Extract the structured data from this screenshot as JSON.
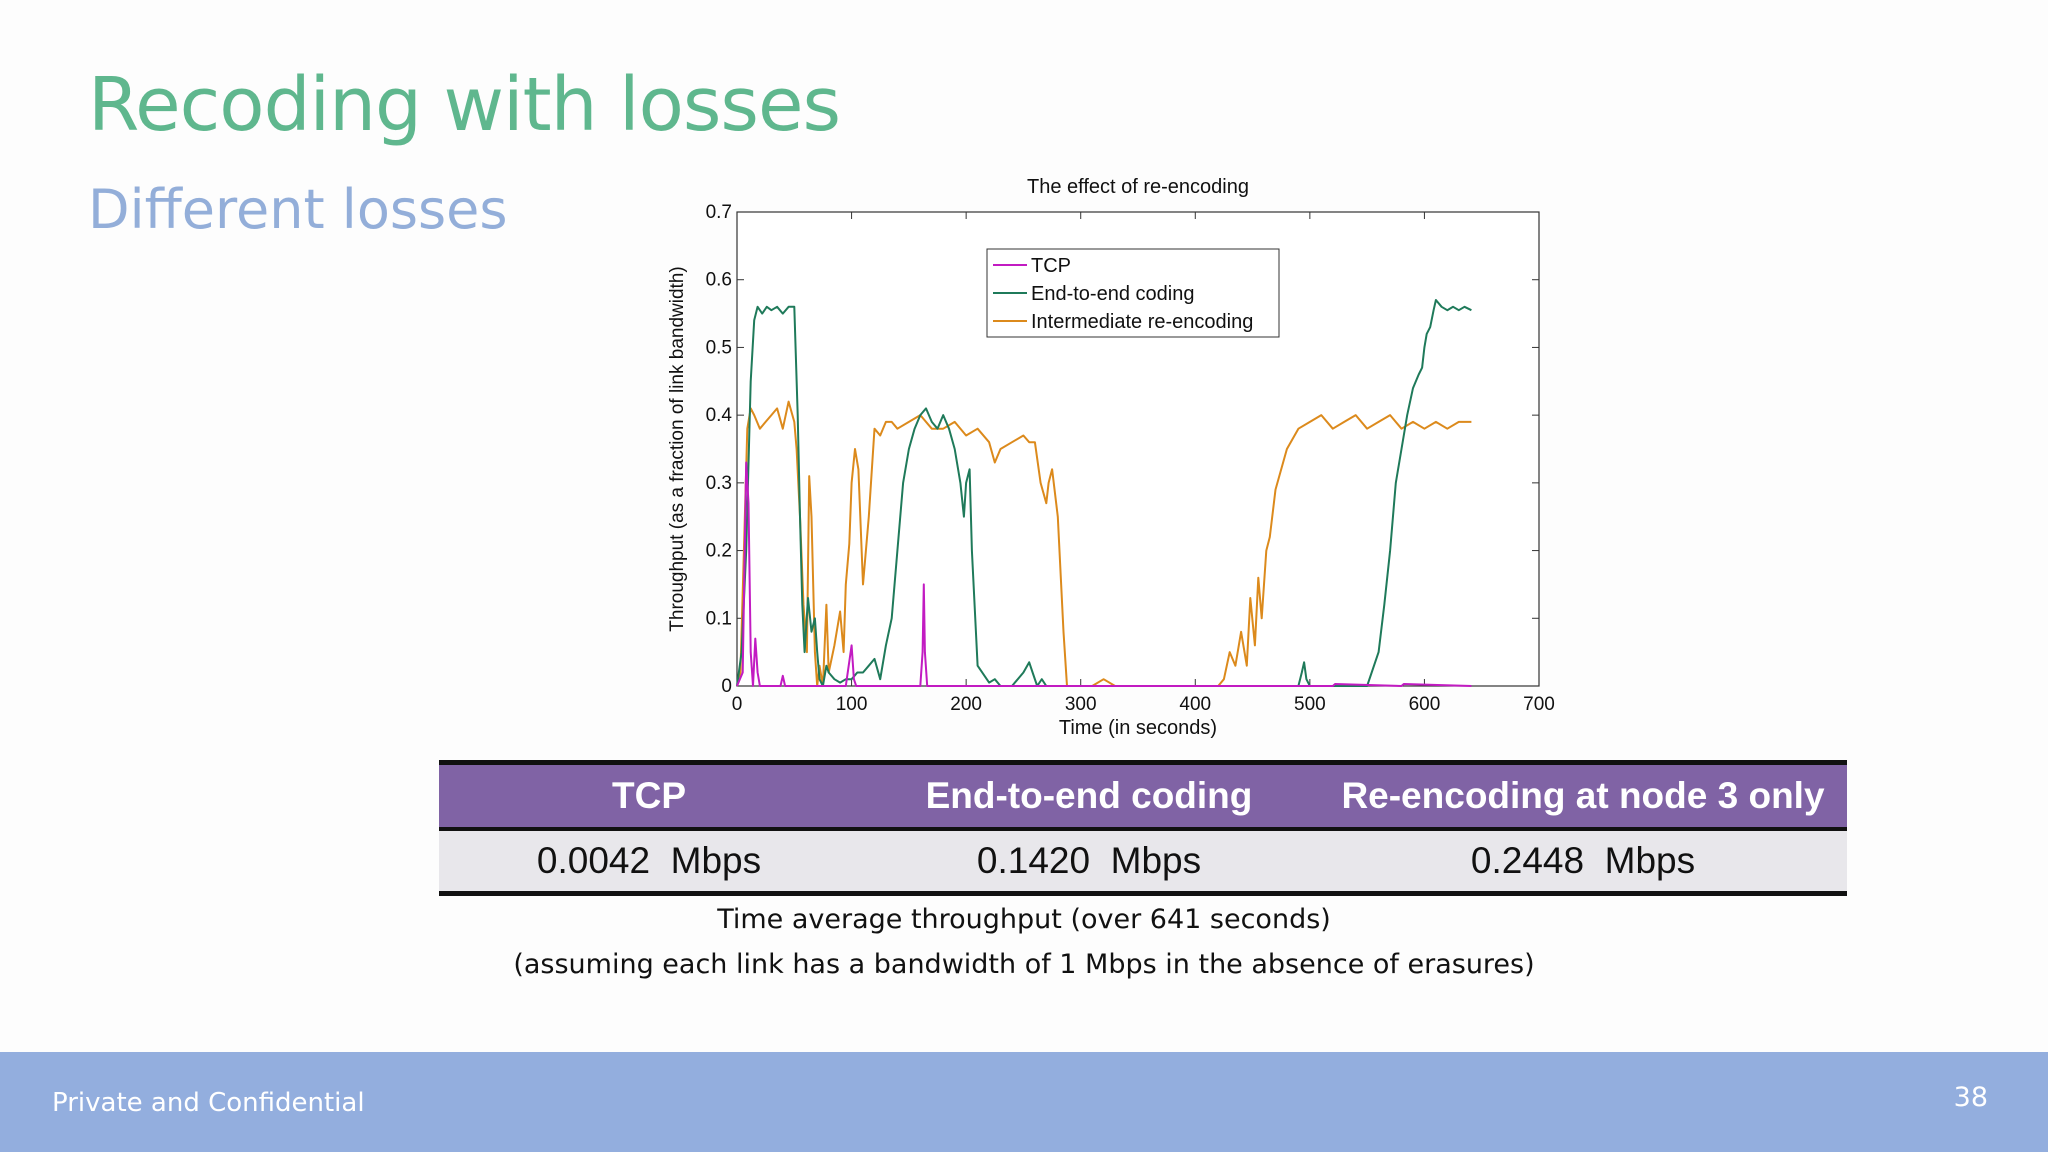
{
  "slide": {
    "title": "Recoding with losses",
    "subtitle": "Different losses",
    "footer_left": "Private and Confidential",
    "page_number": "38"
  },
  "chart_data": {
    "type": "line",
    "title": "The effect of re-encoding",
    "xlabel": "Time (in seconds)",
    "ylabel": "Throughput (as a fraction of link bandwidth)",
    "xlim": [
      0,
      700
    ],
    "ylim": [
      0,
      0.7
    ],
    "xticks": [
      0,
      100,
      200,
      300,
      400,
      500,
      600,
      700
    ],
    "yticks": [
      0,
      0.1,
      0.2,
      0.3,
      0.4,
      0.5,
      0.6,
      0.7
    ],
    "ytick_labels": [
      "0",
      "0.1",
      "0.2",
      "0.3",
      "0.4",
      "0.5",
      "0.6",
      "0.7"
    ],
    "grid": false,
    "legend_position": "top-center",
    "series": [
      {
        "name": "TCP",
        "color": "#c21bc2",
        "x": [
          0,
          5,
          8,
          10,
          12,
          14,
          16,
          18,
          20,
          22,
          30,
          38,
          40,
          42,
          50,
          95,
          100,
          102,
          104,
          160,
          162,
          163,
          164,
          166,
          170,
          508,
          520,
          522,
          580,
          582,
          641
        ],
        "y": [
          0,
          0.02,
          0.33,
          0.27,
          0.05,
          0,
          0.07,
          0.02,
          0,
          0,
          0,
          0,
          0.015,
          0,
          0,
          0,
          0.06,
          0.01,
          0,
          0,
          0.05,
          0.15,
          0.05,
          0,
          0,
          0,
          0,
          0.003,
          0,
          0.003,
          0
        ]
      },
      {
        "name": "End-to-end coding",
        "color": "#1f7a5a",
        "x": [
          0,
          4,
          8,
          12,
          15,
          18,
          22,
          26,
          30,
          35,
          40,
          45,
          50,
          53,
          55,
          57,
          59,
          62,
          65,
          68,
          70,
          72,
          75,
          78,
          80,
          85,
          90,
          95,
          100,
          105,
          110,
          115,
          120,
          125,
          130,
          135,
          140,
          145,
          150,
          155,
          160,
          165,
          170,
          175,
          180,
          185,
          190,
          195,
          198,
          200,
          203,
          205,
          210,
          220,
          225,
          230,
          240,
          250,
          255,
          258,
          262,
          266,
          270,
          280,
          370,
          470,
          490,
          493,
          495,
          497,
          500,
          510,
          550,
          560,
          565,
          570,
          575,
          580,
          585,
          590,
          595,
          598,
          600,
          602,
          605,
          608,
          610,
          615,
          620,
          625,
          630,
          635,
          641
        ],
        "y": [
          0,
          0.05,
          0.2,
          0.45,
          0.54,
          0.56,
          0.55,
          0.56,
          0.555,
          0.56,
          0.55,
          0.56,
          0.56,
          0.4,
          0.25,
          0.12,
          0.05,
          0.13,
          0.08,
          0.1,
          0.05,
          0.01,
          0,
          0.03,
          0.02,
          0.01,
          0.005,
          0.01,
          0.01,
          0.02,
          0.02,
          0.03,
          0.04,
          0.01,
          0.06,
          0.1,
          0.2,
          0.3,
          0.35,
          0.38,
          0.4,
          0.41,
          0.39,
          0.38,
          0.4,
          0.38,
          0.35,
          0.3,
          0.25,
          0.3,
          0.32,
          0.2,
          0.03,
          0.005,
          0.01,
          0,
          0,
          0.02,
          0.035,
          0.02,
          0,
          0.01,
          0,
          0,
          0,
          0,
          0,
          0.02,
          0.035,
          0.01,
          0,
          0,
          0,
          0.05,
          0.12,
          0.2,
          0.3,
          0.35,
          0.4,
          0.44,
          0.46,
          0.47,
          0.5,
          0.52,
          0.53,
          0.555,
          0.57,
          0.56,
          0.555,
          0.56,
          0.555,
          0.56,
          0.555
        ]
      },
      {
        "name": "Intermediate re-encoding",
        "color": "#dc8a1c",
        "x": [
          0,
          3,
          6,
          9,
          12,
          15,
          20,
          25,
          30,
          35,
          40,
          45,
          50,
          52,
          55,
          58,
          61,
          63,
          65,
          68,
          70,
          72,
          75,
          78,
          80,
          85,
          90,
          93,
          95,
          98,
          100,
          103,
          106,
          110,
          115,
          120,
          125,
          130,
          135,
          140,
          150,
          160,
          170,
          180,
          190,
          200,
          210,
          220,
          225,
          230,
          240,
          250,
          255,
          260,
          265,
          270,
          272,
          275,
          280,
          285,
          288,
          290,
          292,
          300,
          310,
          320,
          330,
          340,
          350,
          360,
          370,
          380,
          400,
          420,
          425,
          430,
          435,
          440,
          445,
          448,
          452,
          455,
          458,
          462,
          465,
          470,
          480,
          490,
          500,
          510,
          520,
          530,
          540,
          550,
          560,
          570,
          580,
          590,
          600,
          610,
          620,
          630,
          641
        ],
        "y": [
          0,
          0.02,
          0.2,
          0.38,
          0.41,
          0.4,
          0.38,
          0.39,
          0.4,
          0.41,
          0.38,
          0.42,
          0.39,
          0.35,
          0.25,
          0.12,
          0.05,
          0.31,
          0.25,
          0.05,
          0,
          0.03,
          0,
          0.12,
          0.02,
          0.06,
          0.11,
          0.05,
          0.15,
          0.21,
          0.3,
          0.35,
          0.32,
          0.15,
          0.25,
          0.38,
          0.37,
          0.39,
          0.39,
          0.38,
          0.39,
          0.4,
          0.38,
          0.38,
          0.39,
          0.37,
          0.38,
          0.36,
          0.33,
          0.35,
          0.36,
          0.37,
          0.36,
          0.36,
          0.3,
          0.27,
          0.3,
          0.32,
          0.25,
          0.08,
          0,
          0,
          0,
          0,
          0,
          0.01,
          0,
          0,
          0,
          0,
          0,
          0,
          0,
          0,
          0.01,
          0.05,
          0.03,
          0.08,
          0.03,
          0.13,
          0.06,
          0.16,
          0.1,
          0.2,
          0.22,
          0.29,
          0.35,
          0.38,
          0.39,
          0.4,
          0.38,
          0.39,
          0.4,
          0.38,
          0.39,
          0.4,
          0.38,
          0.39,
          0.38,
          0.39,
          0.38,
          0.39,
          0.39
        ]
      }
    ]
  },
  "table": {
    "headers": [
      "TCP",
      "End-to-end coding",
      "Re-encoding at node 3 only"
    ],
    "row": [
      "0.0042  Mbps",
      "0.1420  Mbps",
      "0.2448  Mbps"
    ]
  },
  "captions": {
    "line1": "Time average throughput (over 641 seconds)",
    "line2": "(assuming each link has a bandwidth of 1 Mbps in the absence of erasures)"
  }
}
